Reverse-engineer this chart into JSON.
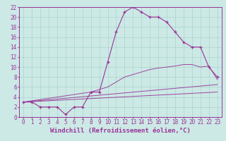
{
  "background_color": "#cce9e5",
  "grid_color": "#aad4ce",
  "line_color": "#993399",
  "xlim": [
    -0.5,
    23.5
  ],
  "ylim": [
    0,
    22
  ],
  "xticks": [
    0,
    1,
    2,
    3,
    4,
    5,
    6,
    7,
    8,
    9,
    10,
    11,
    12,
    13,
    14,
    15,
    16,
    17,
    18,
    19,
    20,
    21,
    22,
    23
  ],
  "yticks": [
    0,
    2,
    4,
    6,
    8,
    10,
    12,
    14,
    16,
    18,
    20,
    22
  ],
  "xlabel": "Windchill (Refroidissement éolien,°C)",
  "main_x": [
    0,
    1,
    2,
    3,
    4,
    5,
    6,
    7,
    8,
    9,
    10,
    11,
    12,
    13,
    14,
    15,
    16,
    17,
    18,
    19,
    20,
    21,
    22,
    23
  ],
  "main_y": [
    3,
    3,
    2,
    2,
    2,
    0.5,
    2,
    2,
    5,
    5,
    11,
    17,
    21,
    22,
    21,
    20,
    20,
    19,
    17,
    15,
    14,
    14,
    10,
    8
  ],
  "line2_x": [
    0,
    8,
    10,
    11,
    12,
    13,
    14,
    15,
    16,
    17,
    18,
    19,
    20,
    21,
    22,
    23
  ],
  "line2_y": [
    3,
    5,
    6,
    7,
    8,
    8.5,
    9,
    9.5,
    9.8,
    10,
    10.2,
    10.5,
    10.5,
    10,
    10.2,
    7.5
  ],
  "line3_x": [
    0,
    23
  ],
  "line3_y": [
    3,
    6.5
  ],
  "line4_x": [
    0,
    23
  ],
  "line4_y": [
    3,
    5.0
  ],
  "xlabel_fontsize": 6.5,
  "tick_fontsize": 5.5
}
